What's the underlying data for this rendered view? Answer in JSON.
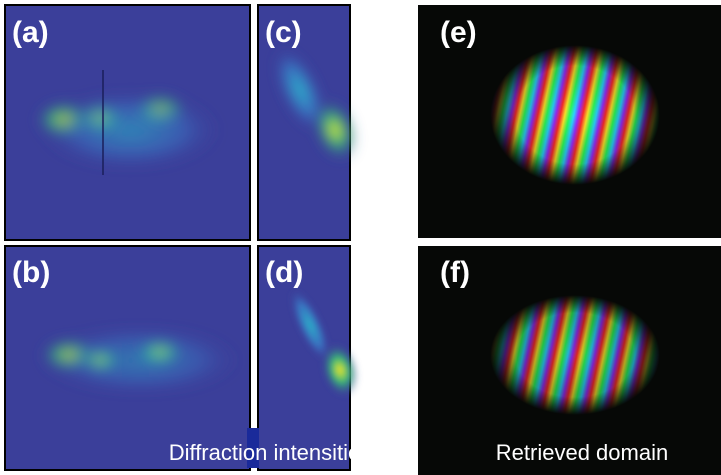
{
  "panels": [
    {
      "label": "(a)"
    },
    {
      "label": "(b)"
    },
    {
      "label": "(c)"
    },
    {
      "label": "(d)"
    },
    {
      "label": "(e)"
    },
    {
      "label": "(f)"
    }
  ],
  "captions": [
    "Diffraction intensities",
    "Retrieved domain"
  ]
}
